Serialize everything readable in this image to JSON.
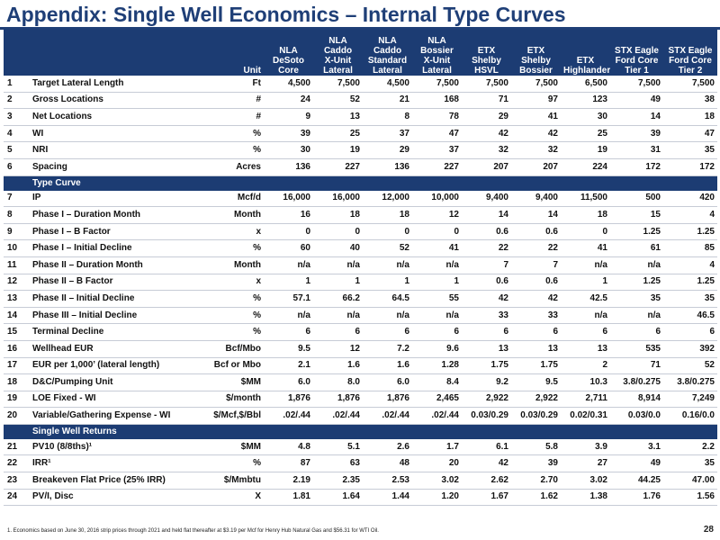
{
  "title": "Appendix: Single Well Economics – Internal Type Curves",
  "columns": [
    {
      "label": "Unit"
    },
    {
      "label": "NLA\nDeSoto\nCore"
    },
    {
      "label": "NLA\nCaddo\nX-Unit\nLateral"
    },
    {
      "label": "NLA\nCaddo\nStandard\nLateral"
    },
    {
      "label": "NLA\nBossier\nX-Unit\nLateral"
    },
    {
      "label": "ETX\nShelby\nHSVL"
    },
    {
      "label": "ETX\nShelby\nBossier"
    },
    {
      "label": "ETX\nHighlander"
    },
    {
      "label": "STX Eagle\nFord Core\nTier 1"
    },
    {
      "label": "STX Eagle\nFord Core\nTier 2"
    }
  ],
  "rows": [
    {
      "type": "row",
      "num": "1",
      "label": "Target Lateral Length",
      "unit": "Ft",
      "values": [
        "4,500",
        "7,500",
        "4,500",
        "7,500",
        "7,500",
        "7,500",
        "6,500",
        "7,500",
        "7,500"
      ]
    },
    {
      "type": "row",
      "num": "2",
      "label": "Gross Locations",
      "unit": "#",
      "values": [
        "24",
        "52",
        "21",
        "168",
        "71",
        "97",
        "123",
        "49",
        "38"
      ]
    },
    {
      "type": "row",
      "num": "3",
      "label": "Net Locations",
      "unit": "#",
      "values": [
        "9",
        "13",
        "8",
        "78",
        "29",
        "41",
        "30",
        "14",
        "18"
      ]
    },
    {
      "type": "row",
      "num": "4",
      "label": "WI",
      "unit": "%",
      "values": [
        "39",
        "25",
        "37",
        "47",
        "42",
        "42",
        "25",
        "39",
        "47"
      ]
    },
    {
      "type": "row",
      "num": "5",
      "label": "NRI",
      "unit": "%",
      "values": [
        "30",
        "19",
        "29",
        "37",
        "32",
        "32",
        "19",
        "31",
        "35"
      ]
    },
    {
      "type": "row",
      "num": "6",
      "label": "Spacing",
      "unit": "Acres",
      "values": [
        "136",
        "227",
        "136",
        "227",
        "207",
        "207",
        "224",
        "172",
        "172"
      ]
    },
    {
      "type": "band",
      "label": "Type Curve"
    },
    {
      "type": "row",
      "num": "7",
      "label": "IP",
      "unit": "Mcf/d",
      "values": [
        "16,000",
        "16,000",
        "12,000",
        "10,000",
        "9,400",
        "9,400",
        "11,500",
        "500",
        "420"
      ]
    },
    {
      "type": "row",
      "num": "8",
      "label": "Phase I – Duration Month",
      "unit": "Month",
      "values": [
        "16",
        "18",
        "18",
        "12",
        "14",
        "14",
        "18",
        "15",
        "4"
      ]
    },
    {
      "type": "row",
      "num": "9",
      "label": "Phase I – B Factor",
      "unit": "x",
      "values": [
        "0",
        "0",
        "0",
        "0",
        "0.6",
        "0.6",
        "0",
        "1.25",
        "1.25"
      ]
    },
    {
      "type": "row",
      "num": "10",
      "label": "Phase I – Initial Decline",
      "unit": "%",
      "values": [
        "60",
        "40",
        "52",
        "41",
        "22",
        "22",
        "41",
        "61",
        "85"
      ]
    },
    {
      "type": "row",
      "num": "11",
      "label": "Phase II – Duration Month",
      "unit": "Month",
      "values": [
        "n/a",
        "n/a",
        "n/a",
        "n/a",
        "7",
        "7",
        "n/a",
        "n/a",
        "4"
      ]
    },
    {
      "type": "row",
      "num": "12",
      "label": "Phase II – B Factor",
      "unit": "x",
      "values": [
        "1",
        "1",
        "1",
        "1",
        "0.6",
        "0.6",
        "1",
        "1.25",
        "1.25"
      ]
    },
    {
      "type": "row",
      "num": "13",
      "label": "Phase II – Initial Decline",
      "unit": "%",
      "values": [
        "57.1",
        "66.2",
        "64.5",
        "55",
        "42",
        "42",
        "42.5",
        "35",
        "35"
      ]
    },
    {
      "type": "row",
      "num": "14",
      "label": "Phase III – Initial Decline",
      "unit": "%",
      "values": [
        "n/a",
        "n/a",
        "n/a",
        "n/a",
        "33",
        "33",
        "n/a",
        "n/a",
        "46.5"
      ]
    },
    {
      "type": "row",
      "num": "15",
      "label": "Terminal Decline",
      "unit": "%",
      "values": [
        "6",
        "6",
        "6",
        "6",
        "6",
        "6",
        "6",
        "6",
        "6"
      ]
    },
    {
      "type": "row",
      "num": "16",
      "label": "Wellhead EUR",
      "unit": "Bcf/Mbo",
      "values": [
        "9.5",
        "12",
        "7.2",
        "9.6",
        "13",
        "13",
        "13",
        "535",
        "392"
      ]
    },
    {
      "type": "row",
      "num": "17",
      "label": "EUR per 1,000’ (lateral length)",
      "unit": "Bcf or Mbo",
      "values": [
        "2.1",
        "1.6",
        "1.6",
        "1.28",
        "1.75",
        "1.75",
        "2",
        "71",
        "52"
      ]
    },
    {
      "type": "row",
      "num": "18",
      "label": "D&C/Pumping Unit",
      "unit": "$MM",
      "values": [
        "6.0",
        "8.0",
        "6.0",
        "8.4",
        "9.2",
        "9.5",
        "10.3",
        "3.8/0.275",
        "3.8/0.275"
      ]
    },
    {
      "type": "row",
      "num": "19",
      "label": "LOE Fixed - WI",
      "unit": "$/month",
      "values": [
        "1,876",
        "1,876",
        "1,876",
        "2,465",
        "2,922",
        "2,922",
        "2,711",
        "8,914",
        "7,249"
      ]
    },
    {
      "type": "row",
      "num": "20",
      "label": "Variable/Gathering Expense - WI",
      "unit": "$/Mcf,$/Bbl",
      "values": [
        ".02/.44",
        ".02/.44",
        ".02/.44",
        ".02/.44",
        "0.03/0.29",
        "0.03/0.29",
        "0.02/0.31",
        "0.03/0.0",
        "0.16/0.0"
      ]
    },
    {
      "type": "band",
      "label": "Single Well Returns"
    },
    {
      "type": "row",
      "num": "21",
      "label": "PV10 (8/8ths)¹",
      "unit": "$MM",
      "values": [
        "4.8",
        "5.1",
        "2.6",
        "1.7",
        "6.1",
        "5.8",
        "3.9",
        "3.1",
        "2.2"
      ]
    },
    {
      "type": "row",
      "num": "22",
      "label": "IRR¹",
      "unit": "%",
      "values": [
        "87",
        "63",
        "48",
        "20",
        "42",
        "39",
        "27",
        "49",
        "35"
      ]
    },
    {
      "type": "row",
      "num": "23",
      "label": "Breakeven Flat Price (25% IRR)",
      "unit": "$/Mmbtu",
      "values": [
        "2.19",
        "2.35",
        "2.53",
        "3.02",
        "2.62",
        "2.70",
        "3.02",
        "44.25",
        "47.00"
      ]
    },
    {
      "type": "row",
      "num": "24",
      "label": "PV/I, Disc",
      "unit": "X",
      "values": [
        "1.81",
        "1.64",
        "1.44",
        "1.20",
        "1.67",
        "1.62",
        "1.38",
        "1.76",
        "1.56"
      ]
    }
  ],
  "footnote": "1.  Economics based on June 30, 2016 strip prices through 2021 and held flat thereafter at $3.19 per Mcf for Henry Hub Natural Gas and $56.31 for WTI Oil.",
  "page_number": "28"
}
